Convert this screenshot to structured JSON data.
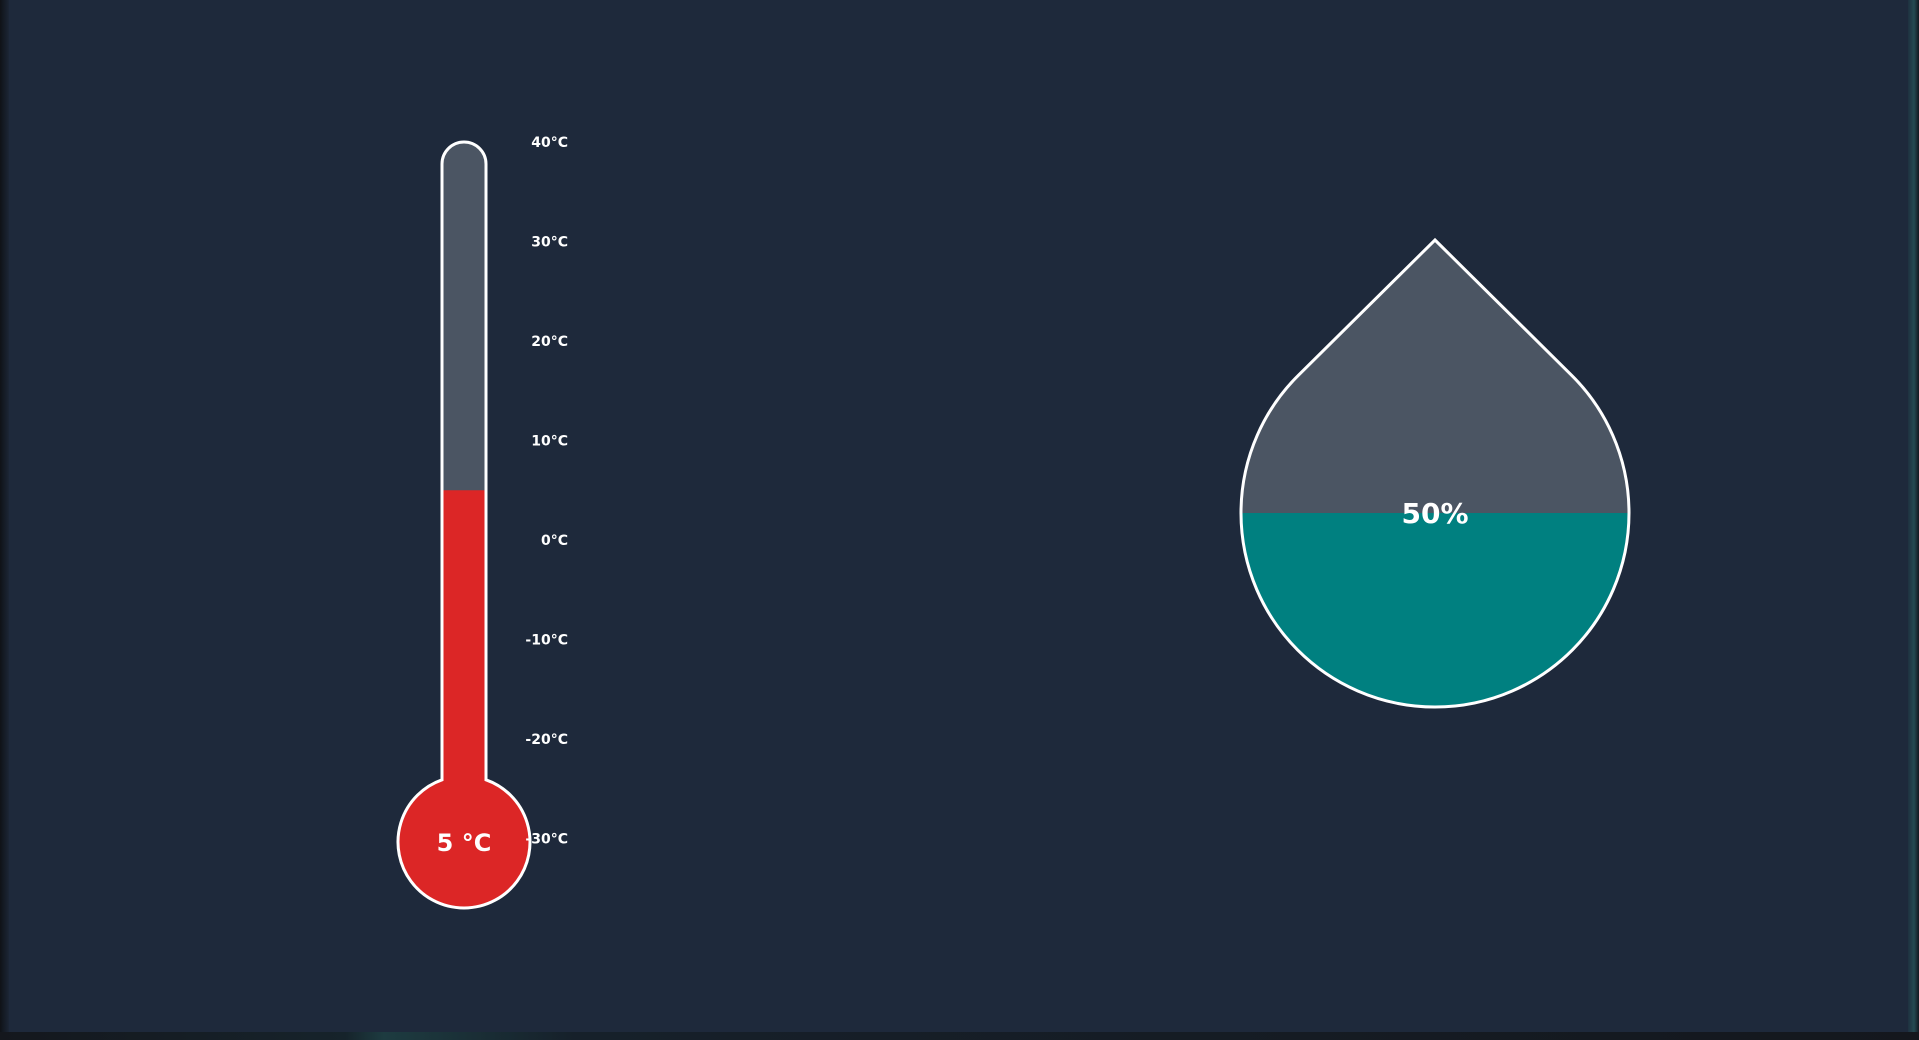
{
  "thermometer": {
    "value": 5,
    "min": -40,
    "max": 40,
    "unit": "°C",
    "reading_label": "5 °C",
    "ticks": [
      "40°C",
      "30°C",
      "20°C",
      "10°C",
      "0°C",
      "-10°C",
      "-20°C",
      "-30°C"
    ],
    "tick_values": [
      40,
      30,
      20,
      10,
      0,
      -10,
      -20,
      -30
    ],
    "fill_color": "#dc2626",
    "empty_color": "#4b5563",
    "outline_color": "#ffffff"
  },
  "humidity": {
    "value": 50,
    "max": 100,
    "label": "50%",
    "fill_color": "#008080",
    "empty_color": "#4b5563",
    "outline_color": "#ffffff"
  },
  "theme": {
    "background": "#1e293b"
  }
}
